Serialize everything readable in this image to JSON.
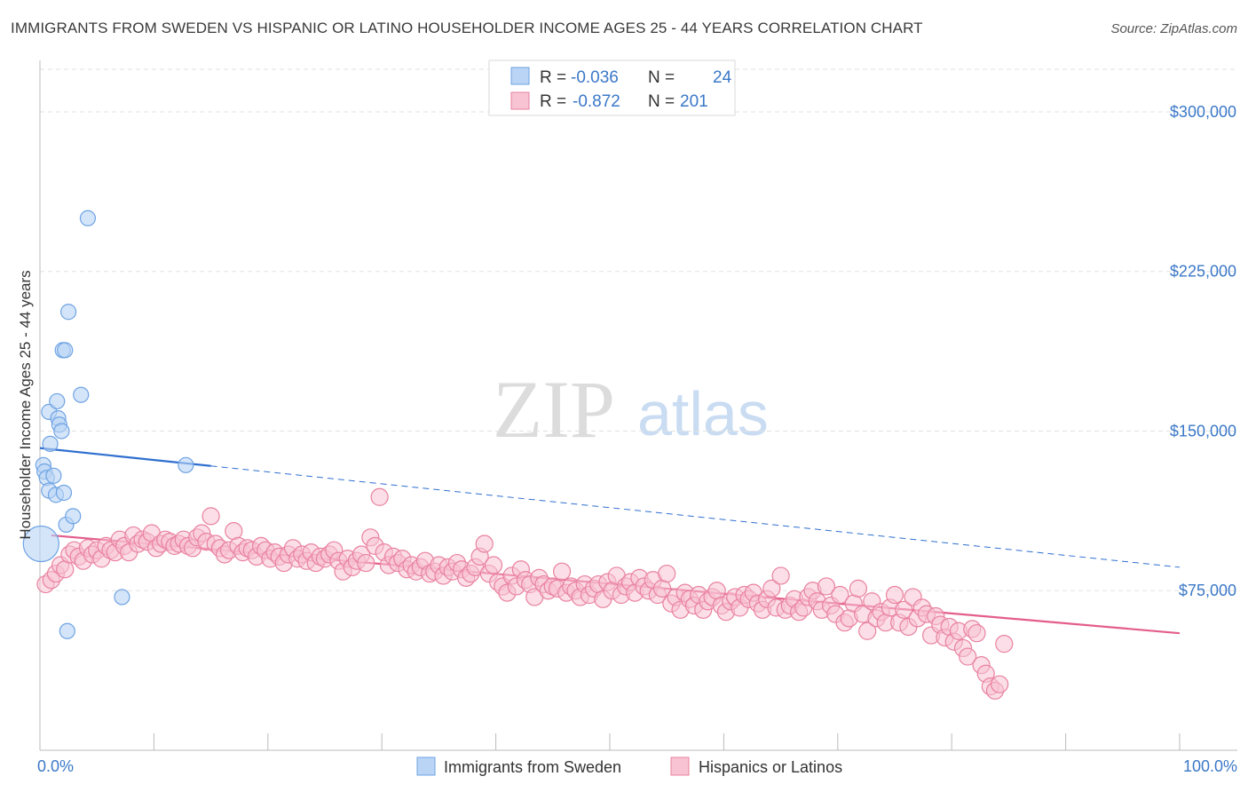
{
  "header": {
    "title": "IMMIGRANTS FROM SWEDEN VS HISPANIC OR LATINO HOUSEHOLDER INCOME AGES 25 - 44 YEARS CORRELATION CHART",
    "source": "Source: ZipAtlas.com"
  },
  "watermark": {
    "zip": "ZIP",
    "atlas": "atlas"
  },
  "legend_box": {
    "rows": [
      {
        "r_label": "R =",
        "r_value": "-0.036",
        "n_label": "N =",
        "n_value": "24",
        "color": "#aecdf3"
      },
      {
        "r_label": "R =",
        "r_value": "-0.872",
        "n_label": "N =",
        "n_value": "201",
        "color": "#f7b8cb"
      }
    ]
  },
  "chart_data": {
    "type": "scatter",
    "title": "IMMIGRANTS FROM SWEDEN VS HISPANIC OR LATINO HOUSEHOLDER INCOME AGES 25 - 44 YEARS CORRELATION CHART",
    "xlabel": "",
    "ylabel": "Householder Income Ages 25 - 44 years",
    "xlim": [
      0,
      100
    ],
    "ylim": [
      0,
      320000
    ],
    "x_tick_labels": [
      "0.0%",
      "100.0%"
    ],
    "y_ticks": [
      75000,
      150000,
      225000,
      300000
    ],
    "y_tick_labels": [
      "$75,000",
      "$150,000",
      "$225,000",
      "$300,000"
    ],
    "grid": "horizontal dashed",
    "legend_position": "bottom",
    "colors": {
      "sweden": "#6ea3e3",
      "sweden_fill": "#b9d4f5",
      "sweden_line": "#2f6fcf",
      "hispanic": "#e9819f",
      "hispanic_fill": "#f8c3d3",
      "hispanic_line": "#e45d8c",
      "axis_label": "#3b78c7"
    },
    "series": [
      {
        "name": "Immigrants from Sweden",
        "r": -0.036,
        "n": 24,
        "trend": {
          "x0": 0,
          "y0": 142000,
          "x1": 100,
          "y1": 86000,
          "solid_until_x": 15
        },
        "points": [
          [
            0.1,
            97000
          ],
          [
            0.3,
            134000
          ],
          [
            0.4,
            131000
          ],
          [
            0.6,
            128000
          ],
          [
            0.8,
            122000
          ],
          [
            0.9,
            144000
          ],
          [
            0.8,
            159000
          ],
          [
            1.2,
            129000
          ],
          [
            1.4,
            120000
          ],
          [
            1.5,
            164000
          ],
          [
            1.6,
            156000
          ],
          [
            1.7,
            153000
          ],
          [
            1.9,
            150000
          ],
          [
            2.0,
            188000
          ],
          [
            2.2,
            188000
          ],
          [
            2.1,
            121000
          ],
          [
            2.3,
            106000
          ],
          [
            2.4,
            56000
          ],
          [
            2.5,
            206000
          ],
          [
            2.9,
            110000
          ],
          [
            3.6,
            167000
          ],
          [
            4.2,
            250000
          ],
          [
            7.2,
            72000
          ],
          [
            12.8,
            134000
          ]
        ]
      },
      {
        "name": "Hispanics or Latinos",
        "r": -0.872,
        "n": 201,
        "trend": {
          "x0": 1,
          "y0": 101000,
          "x1": 100,
          "y1": 55000
        },
        "points": [
          [
            0.5,
            78000
          ],
          [
            1.0,
            80000
          ],
          [
            1.4,
            83000
          ],
          [
            1.8,
            87000
          ],
          [
            2.2,
            85000
          ],
          [
            2.6,
            92000
          ],
          [
            3.0,
            94000
          ],
          [
            3.4,
            91000
          ],
          [
            3.8,
            89000
          ],
          [
            4.2,
            95000
          ],
          [
            4.6,
            92000
          ],
          [
            5.0,
            94000
          ],
          [
            5.4,
            90000
          ],
          [
            5.8,
            96000
          ],
          [
            6.2,
            94000
          ],
          [
            6.6,
            93000
          ],
          [
            7.0,
            99000
          ],
          [
            7.4,
            96000
          ],
          [
            7.8,
            93000
          ],
          [
            8.2,
            101000
          ],
          [
            8.6,
            97000
          ],
          [
            9.0,
            99000
          ],
          [
            9.4,
            98000
          ],
          [
            9.8,
            102000
          ],
          [
            10.2,
            95000
          ],
          [
            10.6,
            97000
          ],
          [
            11.0,
            99000
          ],
          [
            11.4,
            98000
          ],
          [
            11.8,
            96000
          ],
          [
            12.2,
            97000
          ],
          [
            12.6,
            99000
          ],
          [
            13.0,
            96000
          ],
          [
            13.4,
            95000
          ],
          [
            13.8,
            100000
          ],
          [
            14.2,
            102000
          ],
          [
            14.6,
            98000
          ],
          [
            15.0,
            110000
          ],
          [
            15.4,
            97000
          ],
          [
            15.8,
            95000
          ],
          [
            16.2,
            92000
          ],
          [
            16.6,
            94000
          ],
          [
            17.0,
            103000
          ],
          [
            17.4,
            96000
          ],
          [
            17.8,
            93000
          ],
          [
            18.2,
            95000
          ],
          [
            18.6,
            94000
          ],
          [
            19.0,
            91000
          ],
          [
            19.4,
            96000
          ],
          [
            19.8,
            94000
          ],
          [
            20.2,
            90000
          ],
          [
            20.6,
            93000
          ],
          [
            21.0,
            91000
          ],
          [
            21.4,
            88000
          ],
          [
            21.8,
            92000
          ],
          [
            22.2,
            95000
          ],
          [
            22.6,
            90000
          ],
          [
            23.0,
            92000
          ],
          [
            23.4,
            89000
          ],
          [
            23.8,
            93000
          ],
          [
            24.2,
            88000
          ],
          [
            24.6,
            91000
          ],
          [
            25.0,
            90000
          ],
          [
            25.4,
            92000
          ],
          [
            25.8,
            94000
          ],
          [
            26.2,
            89000
          ],
          [
            26.6,
            84000
          ],
          [
            27.0,
            90000
          ],
          [
            27.4,
            86000
          ],
          [
            27.8,
            89000
          ],
          [
            28.2,
            92000
          ],
          [
            28.6,
            88000
          ],
          [
            29.0,
            100000
          ],
          [
            29.4,
            96000
          ],
          [
            29.8,
            119000
          ],
          [
            30.2,
            93000
          ],
          [
            30.6,
            87000
          ],
          [
            31.0,
            91000
          ],
          [
            31.4,
            88000
          ],
          [
            31.8,
            90000
          ],
          [
            32.2,
            85000
          ],
          [
            32.6,
            87000
          ],
          [
            33.0,
            84000
          ],
          [
            33.4,
            86000
          ],
          [
            33.8,
            89000
          ],
          [
            34.2,
            83000
          ],
          [
            34.6,
            84000
          ],
          [
            35.0,
            87000
          ],
          [
            35.4,
            82000
          ],
          [
            35.8,
            86000
          ],
          [
            36.2,
            84000
          ],
          [
            36.6,
            88000
          ],
          [
            37.0,
            85000
          ],
          [
            37.4,
            81000
          ],
          [
            37.8,
            83000
          ],
          [
            38.2,
            86000
          ],
          [
            38.6,
            91000
          ],
          [
            39.0,
            97000
          ],
          [
            39.4,
            83000
          ],
          [
            39.8,
            87000
          ],
          [
            40.2,
            79000
          ],
          [
            40.6,
            77000
          ],
          [
            41.0,
            74000
          ],
          [
            41.4,
            82000
          ],
          [
            41.8,
            77000
          ],
          [
            42.2,
            85000
          ],
          [
            42.6,
            80000
          ],
          [
            43.0,
            78000
          ],
          [
            43.4,
            72000
          ],
          [
            43.8,
            81000
          ],
          [
            44.2,
            78000
          ],
          [
            44.6,
            75000
          ],
          [
            45.0,
            77000
          ],
          [
            45.4,
            76000
          ],
          [
            45.8,
            84000
          ],
          [
            46.2,
            74000
          ],
          [
            46.6,
            77000
          ],
          [
            47.0,
            75000
          ],
          [
            47.4,
            72000
          ],
          [
            47.8,
            78000
          ],
          [
            48.2,
            73000
          ],
          [
            48.6,
            76000
          ],
          [
            49.0,
            78000
          ],
          [
            49.4,
            71000
          ],
          [
            49.8,
            79000
          ],
          [
            50.2,
            75000
          ],
          [
            50.6,
            82000
          ],
          [
            51.0,
            73000
          ],
          [
            51.4,
            77000
          ],
          [
            51.8,
            79000
          ],
          [
            52.2,
            74000
          ],
          [
            52.6,
            81000
          ],
          [
            53.0,
            77000
          ],
          [
            53.4,
            75000
          ],
          [
            53.8,
            80000
          ],
          [
            54.2,
            73000
          ],
          [
            54.6,
            76000
          ],
          [
            55.0,
            83000
          ],
          [
            55.4,
            69000
          ],
          [
            55.8,
            72000
          ],
          [
            56.2,
            66000
          ],
          [
            56.6,
            74000
          ],
          [
            57.0,
            71000
          ],
          [
            57.4,
            68000
          ],
          [
            57.8,
            73000
          ],
          [
            58.2,
            66000
          ],
          [
            58.6,
            70000
          ],
          [
            59.0,
            72000
          ],
          [
            59.4,
            75000
          ],
          [
            59.8,
            68000
          ],
          [
            60.2,
            65000
          ],
          [
            60.6,
            70000
          ],
          [
            61.0,
            72000
          ],
          [
            61.4,
            67000
          ],
          [
            61.8,
            73000
          ],
          [
            62.2,
            71000
          ],
          [
            62.6,
            74000
          ],
          [
            63.0,
            69000
          ],
          [
            63.4,
            66000
          ],
          [
            63.8,
            71000
          ],
          [
            64.2,
            76000
          ],
          [
            64.6,
            67000
          ],
          [
            65.0,
            82000
          ],
          [
            65.4,
            66000
          ],
          [
            65.8,
            68000
          ],
          [
            66.2,
            71000
          ],
          [
            66.6,
            65000
          ],
          [
            67.0,
            67000
          ],
          [
            67.4,
            72000
          ],
          [
            67.8,
            75000
          ],
          [
            68.2,
            70000
          ],
          [
            68.6,
            66000
          ],
          [
            69.0,
            77000
          ],
          [
            69.4,
            68000
          ],
          [
            69.8,
            64000
          ],
          [
            70.2,
            73000
          ],
          [
            70.6,
            60000
          ],
          [
            71.0,
            62000
          ],
          [
            71.4,
            69000
          ],
          [
            71.8,
            76000
          ],
          [
            72.2,
            64000
          ],
          [
            72.6,
            56000
          ],
          [
            73.0,
            70000
          ],
          [
            73.4,
            62000
          ],
          [
            73.8,
            65000
          ],
          [
            74.2,
            60000
          ],
          [
            74.6,
            67000
          ],
          [
            75.0,
            73000
          ],
          [
            75.4,
            60000
          ],
          [
            75.8,
            66000
          ],
          [
            76.2,
            58000
          ],
          [
            76.6,
            72000
          ],
          [
            77.0,
            62000
          ],
          [
            77.4,
            67000
          ],
          [
            77.8,
            64000
          ],
          [
            78.2,
            54000
          ],
          [
            78.6,
            63000
          ],
          [
            79.0,
            59000
          ],
          [
            79.4,
            53000
          ],
          [
            79.8,
            58000
          ],
          [
            80.2,
            51000
          ],
          [
            80.6,
            56000
          ],
          [
            81.0,
            48000
          ],
          [
            81.4,
            44000
          ],
          [
            81.8,
            57000
          ],
          [
            82.2,
            55000
          ],
          [
            82.6,
            40000
          ],
          [
            83.0,
            36000
          ],
          [
            83.4,
            30000
          ],
          [
            83.8,
            28000
          ],
          [
            84.2,
            31000
          ],
          [
            84.6,
            50000
          ]
        ]
      }
    ]
  },
  "bottom_legend": {
    "items": [
      {
        "label": "Immigrants from Sweden",
        "color": "#b9d4f5",
        "border": "#6ea3e3"
      },
      {
        "label": "Hispanics or Latinos",
        "color": "#f8c3d3",
        "border": "#e9819f"
      }
    ]
  }
}
